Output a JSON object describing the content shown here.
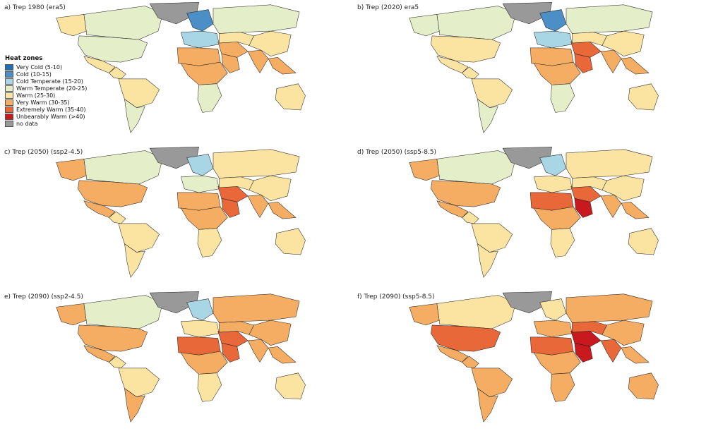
{
  "legend": {
    "title": "Heat zones",
    "items": [
      {
        "label": "Very Cold (5-10)",
        "color": "#1f6fb4"
      },
      {
        "label": "Cold (10-15)",
        "color": "#4b8fc6"
      },
      {
        "label": "Cold Temperate (15-20)",
        "color": "#a9d6e5"
      },
      {
        "label": "Warm Temperate (20-25)",
        "color": "#e4efc9"
      },
      {
        "label": "Warm (25-30)",
        "color": "#fbe3a2"
      },
      {
        "label": "Very Warm (30-35)",
        "color": "#f4ad63"
      },
      {
        "label": "Extremely Warm (35-40)",
        "color": "#e8683a"
      },
      {
        "label": "Unbearably Warm (>40)",
        "color": "#c8191e"
      },
      {
        "label": "no data",
        "color": "#999999"
      }
    ]
  },
  "panels": [
    {
      "title": "a) Trep 1980 (era5)",
      "zones": {
        "alaska": "warm",
        "canada": "warm_temperate",
        "usa": "warm_temperate",
        "mexico": "warm",
        "central_am": "warm",
        "south_am_north": "warm",
        "south_am_south": "warm_temperate",
        "europe_north": "cold",
        "europe": "cold_temperate",
        "north_africa": "very_warm",
        "central_africa": "very_warm",
        "south_africa": "warm_temperate",
        "middle_east": "very_warm",
        "arabia": "very_warm",
        "russia": "warm_temperate",
        "central_asia": "warm",
        "india": "very_warm",
        "china": "warm",
        "se_asia": "very_warm",
        "australia": "warm"
      }
    },
    {
      "title": "b) Trep (2020) era5",
      "zones": {
        "alaska": "warm_temperate",
        "canada": "warm_temperate",
        "usa": "warm",
        "mexico": "warm",
        "central_am": "warm",
        "south_am_north": "warm",
        "south_am_south": "warm_temperate",
        "europe_north": "cold",
        "europe": "cold_temperate",
        "north_africa": "very_warm",
        "central_africa": "very_warm",
        "south_africa": "warm_temperate",
        "middle_east": "extremely_warm",
        "arabia": "extremely_warm",
        "russia": "warm_temperate",
        "central_asia": "warm",
        "india": "very_warm",
        "china": "warm",
        "se_asia": "very_warm",
        "australia": "warm"
      }
    },
    {
      "title": "c) Trep (2050) (ssp2-4.5)",
      "zones": {
        "alaska": "very_warm",
        "canada": "warm_temperate",
        "usa": "very_warm",
        "mexico": "very_warm",
        "central_am": "warm",
        "south_am_north": "warm",
        "south_am_south": "warm",
        "europe_north": "cold_temperate",
        "europe": "warm_temperate",
        "north_africa": "very_warm",
        "central_africa": "very_warm",
        "south_africa": "warm",
        "middle_east": "extremely_warm",
        "arabia": "extremely_warm",
        "russia": "warm",
        "central_asia": "warm",
        "india": "very_warm",
        "china": "warm",
        "se_asia": "very_warm",
        "australia": "warm"
      }
    },
    {
      "title": "d) Trep (2050) (ssp5-8.5)",
      "zones": {
        "alaska": "very_warm",
        "canada": "warm_temperate",
        "usa": "very_warm",
        "mexico": "very_warm",
        "central_am": "warm",
        "south_am_north": "warm",
        "south_am_south": "warm",
        "europe_north": "cold_temperate",
        "europe": "warm",
        "north_africa": "extremely_warm",
        "central_africa": "very_warm",
        "south_africa": "warm",
        "middle_east": "extremely_warm",
        "arabia": "unbearably_warm",
        "russia": "warm",
        "central_asia": "warm",
        "india": "very_warm",
        "china": "warm",
        "se_asia": "very_warm",
        "australia": "warm"
      }
    },
    {
      "title": "e) Trep (2090) (ssp2-4.5)",
      "zones": {
        "alaska": "very_warm",
        "canada": "warm_temperate",
        "usa": "very_warm",
        "mexico": "very_warm",
        "central_am": "warm",
        "south_am_north": "warm",
        "south_am_south": "very_warm",
        "europe_north": "cold_temperate",
        "europe": "warm",
        "north_africa": "extremely_warm",
        "central_africa": "very_warm",
        "south_africa": "warm",
        "middle_east": "extremely_warm",
        "arabia": "extremely_warm",
        "russia": "very_warm",
        "central_asia": "very_warm",
        "india": "very_warm",
        "china": "very_warm",
        "se_asia": "very_warm",
        "australia": "warm"
      }
    },
    {
      "title": "f) Trep (2090) (ssp5-8.5)",
      "zones": {
        "alaska": "very_warm",
        "canada": "warm",
        "usa": "extremely_warm",
        "mexico": "very_warm",
        "central_am": "very_warm",
        "south_am_north": "very_warm",
        "south_am_south": "very_warm",
        "europe_north": "warm",
        "europe": "very_warm",
        "north_africa": "extremely_warm",
        "central_africa": "very_warm",
        "south_africa": "very_warm",
        "middle_east": "unbearably_warm",
        "arabia": "unbearably_warm",
        "russia": "very_warm",
        "central_asia": "extremely_warm",
        "india": "extremely_warm",
        "china": "very_warm",
        "se_asia": "very_warm",
        "australia": "very_warm"
      }
    }
  ],
  "zone_colors": {
    "very_cold": "#1f6fb4",
    "cold": "#4b8fc6",
    "cold_temperate": "#a9d6e5",
    "warm_temperate": "#e4efc9",
    "warm": "#fbe3a2",
    "very_warm": "#f4ad63",
    "extremely_warm": "#e8683a",
    "unbearably_warm": "#c8191e",
    "no_data": "#999999"
  }
}
